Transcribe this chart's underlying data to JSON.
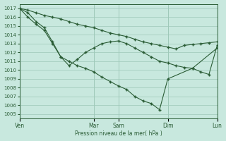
{
  "bg_color": "#c8e8de",
  "line_color": "#2a5c35",
  "grid_color": "#9ec8b8",
  "xlabel": "Pression niveau de la mer( hPa )",
  "ylim": [
    1004.5,
    1017.5
  ],
  "yticks": [
    1005,
    1006,
    1007,
    1008,
    1009,
    1010,
    1011,
    1012,
    1013,
    1014,
    1015,
    1016,
    1017
  ],
  "xlim": [
    0,
    24
  ],
  "day_ticks": [
    0,
    9,
    12,
    18,
    24
  ],
  "day_labels": [
    "Ven",
    "Mar",
    "Sam",
    "Dim",
    "Lun"
  ],
  "vlines": [
    0,
    9,
    12,
    18,
    24
  ],
  "line1_x": [
    0,
    1,
    2,
    3,
    4,
    5,
    6,
    7,
    8,
    9,
    10,
    11,
    12,
    13,
    14,
    15,
    16,
    17,
    18,
    19,
    20,
    21,
    22,
    23,
    24
  ],
  "line1_y": [
    1017,
    1016.8,
    1016.5,
    1016.2,
    1016.0,
    1015.8,
    1015.5,
    1015.2,
    1015.0,
    1014.8,
    1014.5,
    1014.2,
    1014.0,
    1013.8,
    1013.5,
    1013.2,
    1013.0,
    1012.8,
    1012.6,
    1012.4,
    1012.8,
    1012.9,
    1013.0,
    1013.1,
    1013.2
  ],
  "line2_x": [
    0,
    1,
    2,
    3,
    4,
    5,
    6,
    7,
    8,
    9,
    10,
    11,
    12,
    13,
    14,
    15,
    16,
    17,
    18,
    21,
    24
  ],
  "line2_y": [
    1017,
    1016.0,
    1015.2,
    1014.5,
    1013.0,
    1011.5,
    1011.0,
    1010.5,
    1010.2,
    1009.8,
    1009.2,
    1008.7,
    1008.2,
    1007.8,
    1007.0,
    1006.5,
    1006.2,
    1005.5,
    1009.0,
    1010.2,
    1012.5
  ],
  "line3_x": [
    0,
    1,
    2,
    3,
    4,
    5,
    6,
    7,
    8,
    9,
    10,
    11,
    12,
    13,
    14,
    15,
    16,
    17,
    18,
    19,
    20,
    21,
    22,
    23,
    24
  ],
  "line3_y": [
    1017,
    1016.5,
    1015.5,
    1014.8,
    1013.2,
    1011.5,
    1010.5,
    1011.2,
    1012.0,
    1012.5,
    1013.0,
    1013.2,
    1013.3,
    1013.0,
    1012.5,
    1012.0,
    1011.5,
    1011.0,
    1010.8,
    1010.5,
    1010.3,
    1010.2,
    1009.8,
    1009.5,
    1012.8
  ]
}
